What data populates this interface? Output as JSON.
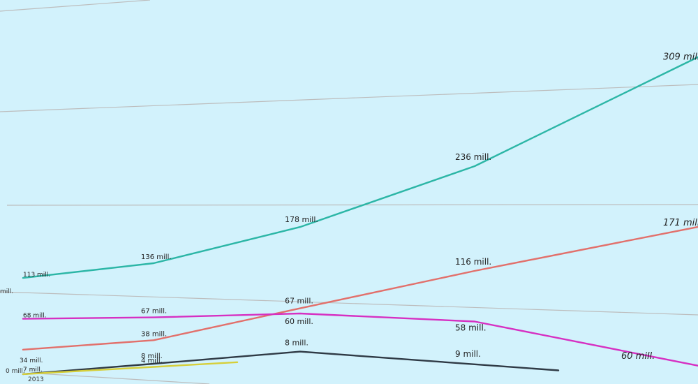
{
  "chart_data": {
    "type": "line",
    "title": "",
    "xlabel": "",
    "ylabel": "",
    "grid": true,
    "x": [
      "2013",
      "",
      "",
      "",
      ""
    ],
    "y_tick_labels": [
      "0 mill.",
      "mill."
    ],
    "colors": {
      "teal": "#2cb6a6",
      "salmon": "#e2706b",
      "magenta": "#d630c2",
      "dark": "#2f3a45",
      "yellow": "#d6cf3a",
      "grid": "#bdbdbd",
      "background": "#d2f2fc"
    },
    "series": [
      {
        "color_key": "teal",
        "values": [
          113,
          136,
          178,
          236,
          309
        ],
        "labels": [
          "113 mill.",
          "136 mill.",
          "178 mill.",
          "236 mill.",
          "309 mill."
        ]
      },
      {
        "color_key": "salmon",
        "values": [
          34,
          38,
          67,
          116,
          171
        ],
        "labels": [
          "34 mill.",
          "38 mill.",
          "67 mill.",
          "116 mill.",
          "171 mill."
        ]
      },
      {
        "color_key": "magenta",
        "values": [
          68,
          67,
          60,
          58,
          60
        ],
        "labels": [
          "68 mill.",
          "67 mill.",
          "60 mill.",
          "58 mill.",
          "60 mill."
        ]
      },
      {
        "color_key": "dark",
        "values": [
          7,
          8,
          8,
          9,
          null
        ],
        "labels": [
          "7 mill.",
          "8 mill.",
          "8 mill.",
          "9 mill.",
          ""
        ]
      },
      {
        "color_key": "yellow",
        "values": [
          7,
          4,
          null,
          null,
          null
        ],
        "labels": [
          "",
          "4 mill.",
          "",
          "",
          ""
        ]
      }
    ]
  }
}
